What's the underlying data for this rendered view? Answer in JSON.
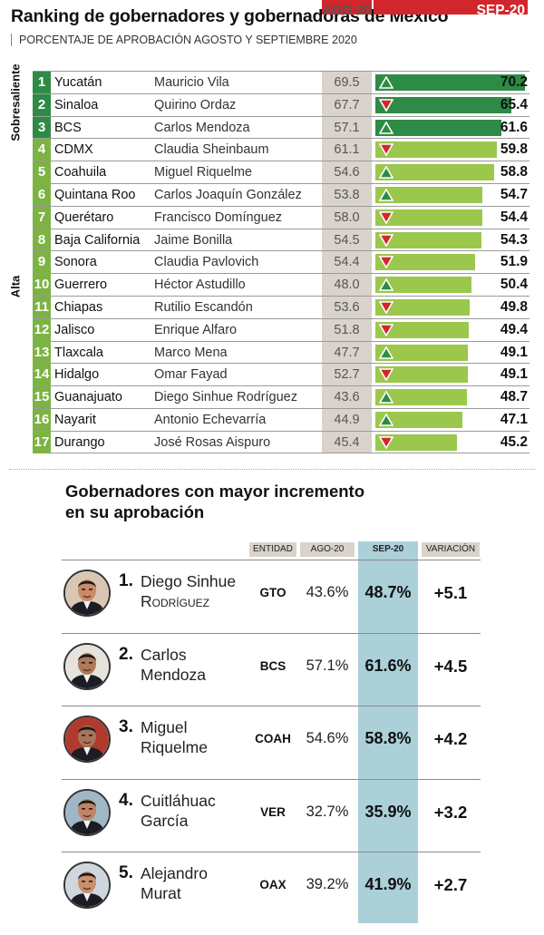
{
  "title": "Ranking de gobernadores y gobernadoras de México",
  "subtitle": "PORCENTAJE DE APROBACIÓN AGOSTO Y SEPTIEMBRE 2020",
  "chart_data": {
    "type": "bar",
    "title": "Ranking de gobernadores y gobernadoras de México",
    "subtitle": "PORCENTAJE DE APROBACIÓN AGOSTO Y SEPTIEMBRE 2020",
    "columns": {
      "ago": "AGO-20",
      "sep": "SEP-20"
    },
    "group_labels": {
      "sobresaliente": "Sobresaliente",
      "alta": "Alta"
    },
    "xlim": [
      0,
      72
    ],
    "rows": [
      {
        "rank": 1,
        "state": "Yucatán",
        "governor": "Mauricio Vila",
        "ago": "69.5",
        "sep": "70.2",
        "sep_value": 70.2,
        "trend": "up",
        "group": "sobresaliente"
      },
      {
        "rank": 2,
        "state": "Sinaloa",
        "governor": "Quirino Ordaz",
        "ago": "67.7",
        "sep": "65.4",
        "sep_value": 65.4,
        "trend": "down",
        "group": "sobresaliente"
      },
      {
        "rank": 3,
        "state": "BCS",
        "governor": "Carlos Mendoza",
        "ago": "57.1",
        "sep": "61.6",
        "sep_value": 61.6,
        "trend": "up",
        "group": "sobresaliente"
      },
      {
        "rank": 4,
        "state": "CDMX",
        "governor": "Claudia Sheinbaum",
        "ago": "61.1",
        "sep": "59.8",
        "sep_value": 59.8,
        "trend": "down",
        "group": "alta"
      },
      {
        "rank": 5,
        "state": "Coahuila",
        "governor": "Miguel Riquelme",
        "ago": "54.6",
        "sep": "58.8",
        "sep_value": 58.8,
        "trend": "up",
        "group": "alta"
      },
      {
        "rank": 6,
        "state": "Quintana Roo",
        "governor": "Carlos Joaquín González",
        "ago": "53.8",
        "sep": "54.7",
        "sep_value": 54.7,
        "trend": "up",
        "group": "alta"
      },
      {
        "rank": 7,
        "state": "Querétaro",
        "governor": "Francisco Domínguez",
        "ago": "58.0",
        "sep": "54.4",
        "sep_value": 54.4,
        "trend": "down",
        "group": "alta"
      },
      {
        "rank": 8,
        "state": "Baja California",
        "governor": "Jaime Bonilla",
        "ago": "54.5",
        "sep": "54.3",
        "sep_value": 54.3,
        "trend": "down",
        "group": "alta"
      },
      {
        "rank": 9,
        "state": "Sonora",
        "governor": "Claudia Pavlovich",
        "ago": "54.4",
        "sep": "51.9",
        "sep_value": 51.9,
        "trend": "down",
        "group": "alta"
      },
      {
        "rank": 10,
        "state": "Guerrero",
        "governor": "Héctor Astudillo",
        "ago": "48.0",
        "sep": "50.4",
        "sep_value": 50.4,
        "trend": "up",
        "group": "alta"
      },
      {
        "rank": 11,
        "state": "Chiapas",
        "governor": "Rutilio Escandón",
        "ago": "53.6",
        "sep": "49.8",
        "sep_value": 49.8,
        "trend": "down",
        "group": "alta"
      },
      {
        "rank": 12,
        "state": "Jalisco",
        "governor": "Enrique Alfaro",
        "ago": "51.8",
        "sep": "49.4",
        "sep_value": 49.4,
        "trend": "down",
        "group": "alta"
      },
      {
        "rank": 13,
        "state": "Tlaxcala",
        "governor": "Marco Mena",
        "ago": "47.7",
        "sep": "49.1",
        "sep_value": 49.1,
        "trend": "up",
        "group": "alta"
      },
      {
        "rank": 14,
        "state": "Hidalgo",
        "governor": "Omar Fayad",
        "ago": "52.7",
        "sep": "49.1",
        "sep_value": 49.1,
        "trend": "down",
        "group": "alta"
      },
      {
        "rank": 15,
        "state": "Guanajuato",
        "governor": "Diego Sinhue Rodríguez",
        "ago": "43.6",
        "sep": "48.7",
        "sep_value": 48.7,
        "trend": "up",
        "group": "alta"
      },
      {
        "rank": 16,
        "state": "Nayarit",
        "governor": "Antonio Echevarría",
        "ago": "44.9",
        "sep": "47.1",
        "sep_value": 47.1,
        "trend": "up",
        "group": "alta"
      },
      {
        "rank": 17,
        "state": "Durango",
        "governor": "José Rosas Aispuro",
        "ago": "45.4",
        "sep": "45.2",
        "sep_value": 45.2,
        "trend": "down",
        "group": "alta"
      }
    ]
  },
  "increment": {
    "title_line1": "Gobernadores con mayor incremento",
    "title_line2": "en su aprobación",
    "headers": {
      "entidad": "ENTIDAD",
      "ago": "AGO-20",
      "sep": "SEP-20",
      "variacion": "VARIACIÓN"
    },
    "rows": [
      {
        "num": "1.",
        "name_line1": "Diego Sinhue",
        "name_line2": "Rodríguez",
        "entidad": "GTO",
        "ago": "43.6%",
        "sep": "48.7%",
        "variacion": "+5.1"
      },
      {
        "num": "2.",
        "name_line1": "Carlos",
        "name_line2": "Mendoza",
        "entidad": "BCS",
        "ago": "57.1%",
        "sep": "61.6%",
        "variacion": "+4.5"
      },
      {
        "num": "3.",
        "name_line1": "Miguel",
        "name_line2": "Riquelme",
        "entidad": "COAH",
        "ago": "54.6%",
        "sep": "58.8%",
        "variacion": "+4.2"
      },
      {
        "num": "4.",
        "name_line1": "Cuitláhuac",
        "name_line2": "García",
        "entidad": "VER",
        "ago": "32.7%",
        "sep": "35.9%",
        "variacion": "+3.2"
      },
      {
        "num": "5.",
        "name_line1": "Alejandro",
        "name_line2": "Murat",
        "entidad": "OAX",
        "ago": "39.2%",
        "sep": "41.9%",
        "variacion": "+2.7"
      }
    ]
  },
  "colors": {
    "header_red": "#d2262c",
    "sobresaliente_green": "#2e8b45",
    "alta_green": "#9bc74d",
    "up_triangle": "#2e8b45",
    "down_triangle": "#d2262c",
    "ago_column_bg": "#d9d3cc",
    "sep_column_bg": "#abd0d8"
  }
}
